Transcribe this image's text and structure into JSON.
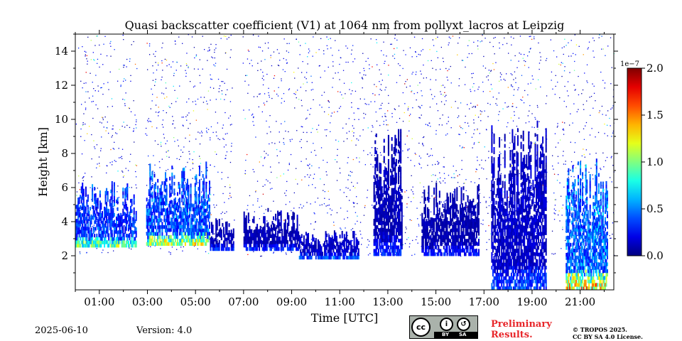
{
  "chart_data": {
    "type": "heatmap",
    "title": "Quasi backscatter coefficient (V1) at 1064 nm from pollyxt_lacros at Leipzig",
    "xlabel": "Time [UTC]",
    "ylabel": "Height [km]",
    "x_tick_labels": [
      "01:00",
      "03:00",
      "05:00",
      "07:00",
      "09:00",
      "11:00",
      "13:00",
      "15:00",
      "17:00",
      "19:00",
      "21:00"
    ],
    "x_tick_values_hours": [
      1,
      3,
      5,
      7,
      9,
      11,
      13,
      15,
      17,
      19,
      21
    ],
    "xlim_hours": [
      0.0,
      22.4
    ],
    "y_tick_labels": [
      "2",
      "4",
      "6",
      "8",
      "10",
      "12",
      "14"
    ],
    "y_tick_values": [
      2,
      4,
      6,
      8,
      10,
      12,
      14
    ],
    "ylim": [
      0,
      15
    ],
    "colorbar": {
      "min": 0.0,
      "max": 2.0,
      "scale_label": "1e−7",
      "tick_labels": [
        "0.0",
        "0.5",
        "1.0",
        "1.5",
        "2.0"
      ],
      "tick_values": [
        0.0,
        0.5,
        1.0,
        1.5,
        2.0
      ],
      "colormap": "jet"
    },
    "data_gaps_hours": [
      [
        2.55,
        2.9
      ],
      [
        6.6,
        6.95
      ],
      [
        19.6,
        19.75
      ],
      [
        22.15,
        22.2
      ]
    ],
    "cloud_layers": [
      {
        "start": 0.0,
        "end": 2.55,
        "base_km": 2.5,
        "top_km": 6.4,
        "peak": 1.2
      },
      {
        "start": 2.9,
        "end": 5.6,
        "base_km": 2.6,
        "top_km": 7.6,
        "peak": 1.4
      },
      {
        "start": 5.6,
        "end": 6.6,
        "base_km": 2.3,
        "top_km": 4.2,
        "peak": 0.4
      },
      {
        "start": 6.95,
        "end": 9.3,
        "base_km": 2.3,
        "top_km": 4.8,
        "peak": 0.4
      },
      {
        "start": 9.3,
        "end": 11.8,
        "base_km": 1.8,
        "top_km": 3.5,
        "peak": 0.5
      },
      {
        "start": 12.4,
        "end": 13.6,
        "base_km": 2.0,
        "top_km": 9.5,
        "peak": 0.4
      },
      {
        "start": 14.4,
        "end": 16.8,
        "base_km": 2.0,
        "top_km": 6.5,
        "peak": 0.35
      },
      {
        "start": 17.3,
        "end": 19.6,
        "base_km": 0.0,
        "top_km": 10.0,
        "peak": 0.5
      },
      {
        "start": 20.4,
        "end": 22.15,
        "base_km": 0.0,
        "top_km": 8.0,
        "peak": 1.6
      }
    ]
  },
  "footer": {
    "date": "2025-06-10",
    "version": "Version: 4.0",
    "preliminary_line1": "Preliminary",
    "preliminary_line2": "Results.",
    "copyright_line1": "© TROPOS 2025.",
    "copyright_line2": "CC BY SA 4.0 License.",
    "cc_badge": {
      "cc": "cc",
      "by": "BY",
      "sa": "SA"
    }
  },
  "colors": {
    "background": "#ffffff",
    "preliminary": "#e8262a",
    "badge_gray": "#aab2ab"
  }
}
